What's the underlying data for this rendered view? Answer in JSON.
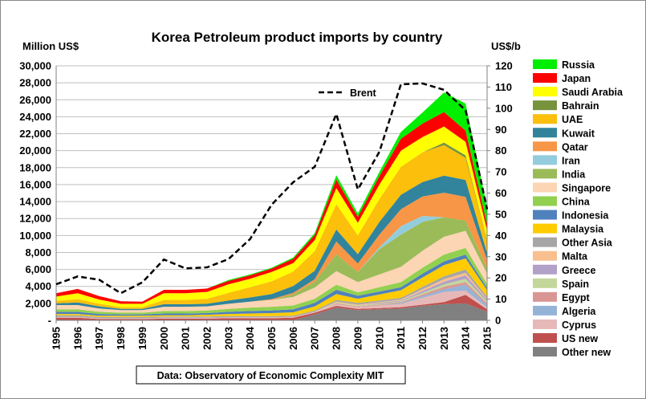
{
  "chart_data": {
    "type": "area",
    "stacked": true,
    "title": "Korea Petroleum product imports by country",
    "ylabel_left": "Million US$",
    "ylabel_right": "US$/b",
    "ylim_left": [
      0,
      30000
    ],
    "yticks_left": [
      "-",
      "2,000",
      "4,000",
      "6,000",
      "8,000",
      "10,000",
      "12,000",
      "14,000",
      "16,000",
      "18,000",
      "20,000",
      "22,000",
      "24,000",
      "26,000",
      "28,000",
      "30,000"
    ],
    "ylim_right": [
      0,
      120
    ],
    "yticks_right": [
      "0",
      "10",
      "20",
      "30",
      "40",
      "50",
      "60",
      "70",
      "80",
      "90",
      "100",
      "110",
      "120"
    ],
    "categories": [
      "1995",
      "1996",
      "1997",
      "1998",
      "1999",
      "2000",
      "2001",
      "2002",
      "2003",
      "2004",
      "2005",
      "2006",
      "2007",
      "2008",
      "2009",
      "2010",
      "2011",
      "2012",
      "2013",
      "2014",
      "2015"
    ],
    "grid": true,
    "legend_position": "right",
    "source_note": "Data: Observatory of Economic Complexity MIT",
    "series": [
      {
        "name": "Other new",
        "color": "#808080",
        "values": [
          0,
          0,
          0,
          0,
          0,
          0,
          0,
          0,
          0,
          0,
          0,
          0,
          700,
          1500,
          1200,
          1300,
          1400,
          1700,
          1900,
          2000,
          1000
        ]
      },
      {
        "name": "US new",
        "color": "#c0504d",
        "values": [
          300,
          300,
          150,
          150,
          150,
          200,
          200,
          200,
          250,
          250,
          250,
          300,
          200,
          200,
          150,
          150,
          150,
          150,
          250,
          1000,
          300
        ]
      },
      {
        "name": "Cyprus",
        "color": "#e6b9b8",
        "values": [
          100,
          100,
          100,
          100,
          100,
          100,
          100,
          100,
          100,
          100,
          100,
          100,
          100,
          200,
          200,
          300,
          400,
          800,
          1200,
          500,
          200
        ]
      },
      {
        "name": "Algeria",
        "color": "#95b3d7",
        "values": [
          0,
          0,
          0,
          0,
          0,
          0,
          0,
          0,
          0,
          0,
          0,
          0,
          0,
          0,
          0,
          0,
          100,
          200,
          300,
          700,
          300
        ]
      },
      {
        "name": "Egypt",
        "color": "#da9694",
        "values": [
          0,
          0,
          0,
          0,
          0,
          0,
          0,
          0,
          0,
          0,
          0,
          0,
          0,
          100,
          100,
          100,
          100,
          200,
          300,
          300,
          200
        ]
      },
      {
        "name": "Spain",
        "color": "#c4d79b",
        "values": [
          0,
          0,
          0,
          0,
          0,
          0,
          0,
          0,
          0,
          0,
          0,
          0,
          0,
          100,
          100,
          100,
          100,
          200,
          300,
          400,
          200
        ]
      },
      {
        "name": "Greece",
        "color": "#b1a0c7",
        "values": [
          0,
          0,
          0,
          0,
          0,
          0,
          0,
          0,
          0,
          0,
          0,
          0,
          0,
          0,
          0,
          100,
          100,
          200,
          300,
          400,
          200
        ]
      },
      {
        "name": "Malta",
        "color": "#fabf8f",
        "values": [
          0,
          0,
          0,
          0,
          0,
          0,
          0,
          0,
          0,
          0,
          0,
          0,
          0,
          100,
          100,
          100,
          100,
          200,
          300,
          300,
          100
        ]
      },
      {
        "name": "Other Asia",
        "color": "#a6a6a6",
        "values": [
          200,
          200,
          150,
          150,
          150,
          150,
          150,
          150,
          150,
          150,
          150,
          150,
          150,
          200,
          200,
          200,
          200,
          300,
          350,
          400,
          250
        ]
      },
      {
        "name": "Malaysia",
        "color": "#ffcc00",
        "values": [
          150,
          150,
          150,
          150,
          150,
          150,
          150,
          200,
          250,
          300,
          350,
          400,
          500,
          700,
          500,
          700,
          900,
          1100,
          1300,
          1300,
          800
        ]
      },
      {
        "name": "Indonesia",
        "color": "#4f81bd",
        "values": [
          250,
          250,
          200,
          150,
          150,
          200,
          200,
          200,
          250,
          300,
          300,
          350,
          400,
          500,
          350,
          350,
          350,
          450,
          450,
          450,
          250
        ]
      },
      {
        "name": "China",
        "color": "#92d050",
        "values": [
          300,
          300,
          250,
          200,
          200,
          300,
          300,
          300,
          350,
          400,
          450,
          450,
          500,
          600,
          400,
          500,
          600,
          700,
          800,
          800,
          500
        ]
      },
      {
        "name": "Singapore",
        "color": "#fcd5b4",
        "values": [
          500,
          500,
          400,
          300,
          300,
          500,
          500,
          500,
          600,
          700,
          800,
          1000,
          1300,
          1600,
          1200,
          1500,
          1800,
          2000,
          2100,
          2000,
          1200
        ]
      },
      {
        "name": "India",
        "color": "#9bbb59",
        "values": [
          0,
          0,
          0,
          0,
          0,
          0,
          0,
          0,
          0,
          0,
          0,
          300,
          700,
          2000,
          1200,
          3000,
          3800,
          3400,
          2300,
          1200,
          600
        ]
      },
      {
        "name": "Iran",
        "color": "#93cddd",
        "values": [
          0,
          0,
          0,
          0,
          0,
          0,
          0,
          0,
          0,
          0,
          0,
          0,
          0,
          0,
          0,
          200,
          1000,
          700,
          0,
          0,
          0
        ]
      },
      {
        "name": "Qatar",
        "color": "#f79646",
        "values": [
          0,
          0,
          0,
          0,
          0,
          0,
          0,
          0,
          0,
          0,
          100,
          200,
          300,
          1500,
          1000,
          1500,
          2000,
          2300,
          2900,
          2800,
          1000
        ]
      },
      {
        "name": "Kuwait",
        "color": "#31849b",
        "values": [
          200,
          300,
          250,
          150,
          150,
          300,
          300,
          300,
          400,
          500,
          600,
          800,
          1000,
          1400,
          1100,
          1500,
          1700,
          1700,
          2000,
          2000,
          800
        ]
      },
      {
        "name": "UAE",
        "color": "#fbbf0c",
        "values": [
          300,
          400,
          300,
          200,
          200,
          500,
          500,
          600,
          900,
          1200,
          1500,
          1700,
          2300,
          3000,
          2200,
          2700,
          3300,
          3500,
          3600,
          2600,
          1500
        ]
      },
      {
        "name": "Bahrain",
        "color": "#77933c",
        "values": [
          0,
          0,
          0,
          0,
          0,
          0,
          0,
          0,
          0,
          0,
          0,
          0,
          0,
          0,
          0,
          0,
          0,
          0,
          300,
          300,
          100
        ]
      },
      {
        "name": "Saudi Arabia",
        "color": "#ffff00",
        "values": [
          500,
          700,
          500,
          400,
          400,
          800,
          800,
          800,
          1000,
          1000,
          1100,
          1000,
          1300,
          1900,
          1500,
          1700,
          1900,
          1800,
          1900,
          1600,
          1100
        ]
      },
      {
        "name": "Japan",
        "color": "#ff0000",
        "values": [
          400,
          500,
          400,
          300,
          250,
          400,
          400,
          400,
          400,
          400,
          400,
          500,
          600,
          1000,
          700,
          1000,
          1400,
          1600,
          1700,
          1300,
          700
        ]
      },
      {
        "name": "Russia",
        "color": "#00ee00",
        "values": [
          0,
          0,
          0,
          0,
          0,
          0,
          0,
          0,
          100,
          100,
          100,
          150,
          250,
          500,
          400,
          500,
          800,
          1300,
          2300,
          3200,
          2000
        ]
      }
    ],
    "line_series": {
      "name": "Brent",
      "axis": "right",
      "color": "#000000",
      "style": "dashed",
      "values": [
        17,
        20.7,
        19.1,
        12.8,
        17.9,
        28.7,
        24.5,
        25,
        28.9,
        38.3,
        54.5,
        65.1,
        72.4,
        97.3,
        61.7,
        79.5,
        111.3,
        111.7,
        108.7,
        99,
        52.4
      ]
    }
  }
}
